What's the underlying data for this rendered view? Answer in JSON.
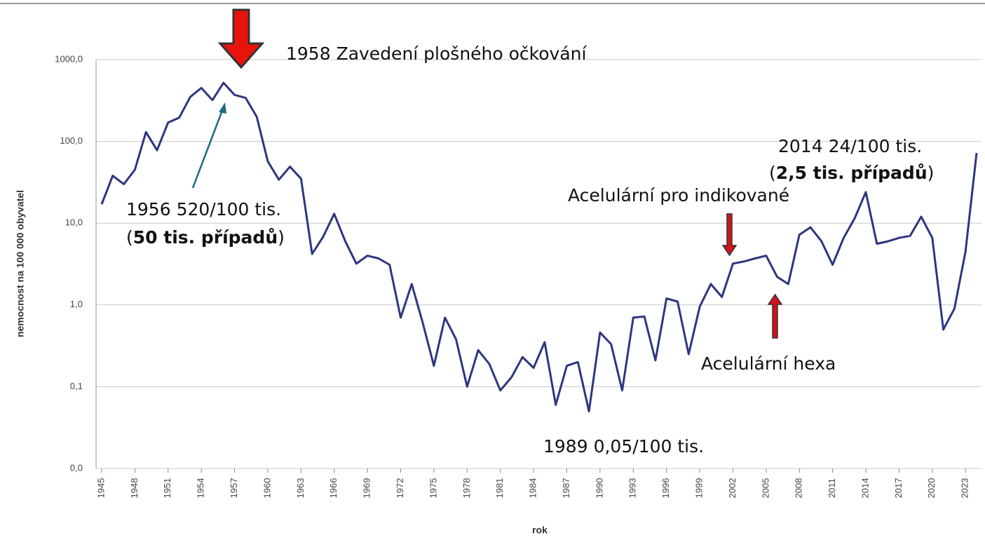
{
  "chart_data": {
    "type": "line",
    "log_y": true,
    "grid": true,
    "color": "#2e3680",
    "y_label": "nemocnost na 100 000 obyvatel",
    "x_label": "rok",
    "x": [
      1945,
      1946,
      1947,
      1948,
      1949,
      1950,
      1951,
      1952,
      1953,
      1954,
      1955,
      1956,
      1957,
      1958,
      1959,
      1960,
      1961,
      1962,
      1963,
      1964,
      1965,
      1966,
      1967,
      1968,
      1969,
      1970,
      1971,
      1972,
      1973,
      1974,
      1975,
      1976,
      1977,
      1978,
      1979,
      1980,
      1981,
      1982,
      1983,
      1984,
      1985,
      1986,
      1987,
      1988,
      1989,
      1990,
      1991,
      1992,
      1993,
      1994,
      1995,
      1996,
      1997,
      1998,
      1999,
      2000,
      2001,
      2002,
      2003,
      2004,
      2005,
      2006,
      2007,
      2008,
      2009,
      2010,
      2011,
      2012,
      2013,
      2014,
      2015,
      2016,
      2017,
      2018,
      2019,
      2020,
      2021,
      2022,
      2023,
      2024
    ],
    "values": [
      17,
      38,
      30,
      45,
      130,
      78,
      170,
      195,
      350,
      450,
      320,
      520,
      370,
      340,
      200,
      57,
      34,
      49,
      35,
      4.2,
      6.8,
      13,
      6,
      3.2,
      4,
      3.7,
      3.1,
      0.7,
      1.8,
      0.6,
      0.18,
      0.7,
      0.38,
      0.1,
      0.28,
      0.19,
      0.09,
      0.13,
      0.23,
      0.17,
      0.35,
      0.06,
      0.18,
      0.2,
      0.05,
      0.46,
      0.33,
      0.09,
      0.7,
      0.72,
      0.21,
      1.2,
      1.1,
      0.25,
      0.95,
      1.8,
      1.25,
      3.2,
      3.4,
      3.7,
      4,
      2.2,
      1.8,
      7.2,
      8.9,
      6,
      3.1,
      6.6,
      11.5,
      24,
      5.6,
      6,
      6.6,
      7,
      12,
      6.6,
      0.5,
      0.9,
      4.5,
      72
    ],
    "xlim": [
      1945,
      2024
    ],
    "xticks": [
      1945,
      1948,
      1951,
      1954,
      1957,
      1960,
      1963,
      1966,
      1969,
      1972,
      1975,
      1978,
      1981,
      1984,
      1987,
      1990,
      1993,
      1996,
      1999,
      2002,
      2005,
      2008,
      2011,
      2014,
      2017,
      2020,
      2023
    ],
    "ylim": [
      0.01,
      1000
    ],
    "yticks": [
      {
        "value": 0.01,
        "label": "0,0"
      },
      {
        "value": 0.1,
        "label": "0,1"
      },
      {
        "value": 1,
        "label": "1,0"
      },
      {
        "value": 10,
        "label": "10,0"
      },
      {
        "value": 100,
        "label": "100,0"
      },
      {
        "value": 1000,
        "label": "1000,0"
      }
    ],
    "annotations": {
      "vaccination": "1958 Zavedení plošného očkování",
      "peak": "1956 520/100 tis.",
      "peak_cases": [
        "(",
        "50 tis. případů",
        ")"
      ],
      "low": "1989 0,05/100 tis.",
      "recent": "2014 24/100 tis.",
      "recent_cases": [
        "(",
        "2,5 tis. případů",
        ")"
      ],
      "indicated": "Acelulární pro indikované",
      "hexa": "Acelulární hexa"
    }
  }
}
